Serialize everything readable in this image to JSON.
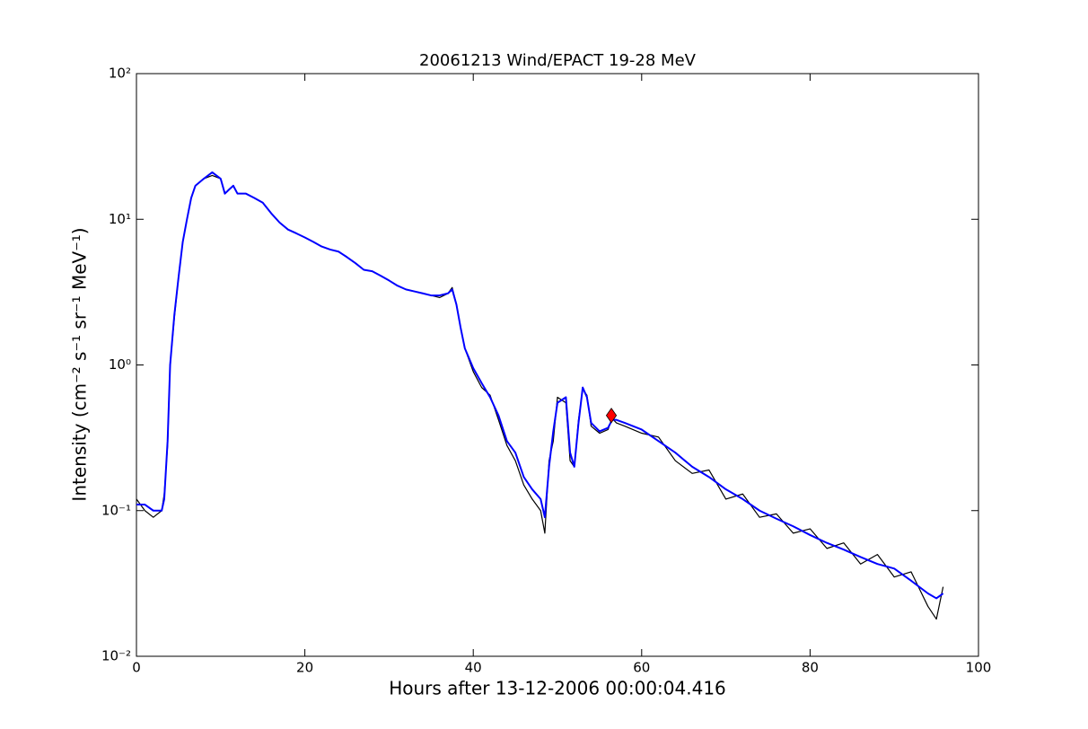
{
  "chart_data": {
    "type": "line",
    "title": "20061213 Wind/EPACT 19-28 MeV",
    "x_label": "Hours after 13-12-2006 00:00:04.416",
    "y_label": "Intensity (cm⁻² s⁻¹ sr⁻¹ MeV⁻¹)",
    "log_y": true,
    "xlim": [
      0,
      100
    ],
    "xticks": [
      0,
      20,
      40,
      60,
      80,
      100
    ],
    "ylim": [
      0.01,
      100
    ],
    "yticks": [
      {
        "value": 0.01,
        "label": "10⁻²"
      },
      {
        "value": 0.1,
        "label": "10⁻¹"
      },
      {
        "value": 1,
        "label": "10⁰"
      },
      {
        "value": 10,
        "label": "10¹"
      },
      {
        "value": 100,
        "label": "10²"
      }
    ],
    "x": [
      0,
      1,
      2,
      3,
      3.3,
      3.7,
      4,
      4.5,
      5,
      5.5,
      6,
      6.5,
      7,
      8,
      9,
      10,
      10.5,
      11,
      11.5,
      12,
      13,
      14,
      15,
      16,
      17,
      18,
      19,
      20,
      21,
      22,
      23,
      24,
      25,
      26,
      27,
      28,
      29,
      30,
      31,
      32,
      33,
      34,
      35,
      36,
      37,
      37.5,
      38,
      38.5,
      39,
      40,
      41,
      42,
      43,
      44,
      45,
      46,
      47,
      48,
      48.5,
      49,
      49.5,
      50,
      51,
      51.5,
      52,
      52.5,
      53,
      53.5,
      54,
      55,
      56,
      56.5,
      57,
      58,
      60,
      62,
      64,
      66,
      68,
      70,
      72,
      74,
      76,
      78,
      80,
      82,
      84,
      86,
      88,
      90,
      92,
      94,
      95,
      95.8
    ],
    "series": [
      {
        "color": "#000000",
        "width": 1.2,
        "values": [
          0.12,
          0.1,
          0.09,
          0.1,
          0.13,
          0.28,
          1.0,
          2.1,
          4,
          7,
          10,
          14,
          17,
          19,
          20,
          19,
          15,
          16,
          17,
          15,
          15,
          14,
          13,
          11,
          9.5,
          8.5,
          8,
          7.5,
          7,
          6.5,
          6.2,
          6,
          5.5,
          5,
          4.5,
          4.4,
          4.1,
          3.8,
          3.5,
          3.3,
          3.2,
          3.1,
          3.0,
          2.9,
          3.1,
          3.4,
          2.6,
          1.8,
          1.3,
          0.9,
          0.7,
          0.62,
          0.42,
          0.28,
          0.22,
          0.15,
          0.12,
          0.1,
          0.07,
          0.22,
          0.3,
          0.6,
          0.55,
          0.22,
          0.2,
          0.42,
          0.68,
          0.62,
          0.38,
          0.34,
          0.36,
          0.43,
          0.4,
          0.38,
          0.34,
          0.32,
          0.22,
          0.18,
          0.19,
          0.12,
          0.13,
          0.09,
          0.095,
          0.07,
          0.075,
          0.055,
          0.06,
          0.043,
          0.05,
          0.035,
          0.038,
          0.022,
          0.018,
          0.03
        ]
      },
      {
        "color": "#0000ff",
        "width": 2,
        "values": [
          0.11,
          0.11,
          0.1,
          0.1,
          0.12,
          0.3,
          1.0,
          2.2,
          4,
          7,
          10,
          14,
          17,
          19,
          21,
          19,
          15,
          16,
          17,
          15,
          15,
          14,
          13,
          11,
          9.5,
          8.5,
          8,
          7.5,
          7,
          6.5,
          6.2,
          6,
          5.5,
          5,
          4.5,
          4.4,
          4.1,
          3.8,
          3.5,
          3.3,
          3.2,
          3.1,
          3.0,
          3.0,
          3.1,
          3.3,
          2.6,
          1.8,
          1.3,
          0.95,
          0.75,
          0.6,
          0.45,
          0.3,
          0.25,
          0.17,
          0.14,
          0.12,
          0.09,
          0.2,
          0.35,
          0.55,
          0.6,
          0.25,
          0.2,
          0.4,
          0.7,
          0.6,
          0.4,
          0.35,
          0.37,
          0.42,
          0.42,
          0.4,
          0.36,
          0.3,
          0.25,
          0.2,
          0.17,
          0.14,
          0.12,
          0.1,
          0.088,
          0.078,
          0.068,
          0.06,
          0.054,
          0.048,
          0.043,
          0.04,
          0.033,
          0.027,
          0.025,
          0.027
        ]
      }
    ],
    "markers": [
      {
        "x": 56.4,
        "y": 0.45,
        "color": "#ff0000",
        "shape": "diamond"
      }
    ]
  }
}
